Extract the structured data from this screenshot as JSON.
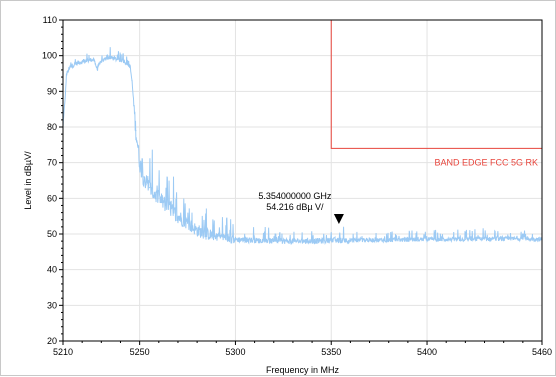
{
  "chart_data": {
    "type": "line",
    "title": "",
    "xlabel": "Frequency in MHz",
    "ylabel": "Level in dBµV/",
    "xlim": [
      5210,
      5460
    ],
    "ylim": [
      20,
      110
    ],
    "x_ticks": [
      5210,
      5250,
      5300,
      5350,
      5400,
      5460
    ],
    "y_ticks": [
      20,
      30,
      40,
      50,
      60,
      70,
      80,
      90,
      100,
      110
    ],
    "x_tick_labels": [
      "5210",
      "5250",
      "5300",
      "5350",
      "5400",
      "5460"
    ],
    "y_tick_labels": [
      "20",
      "30",
      "40",
      "50",
      "60",
      "70",
      "80",
      "90",
      "100",
      "110"
    ],
    "grid": true,
    "series": [
      {
        "color": "#9ccaf4",
        "x": [
          5210,
          5212,
          5214,
          5218,
          5222,
          5226,
          5228,
          5230,
          5234,
          5238,
          5242,
          5245,
          5246,
          5247,
          5248,
          5249,
          5250,
          5252,
          5255,
          5258,
          5262,
          5266,
          5270,
          5275,
          5280,
          5285,
          5290,
          5295,
          5300,
          5310,
          5320,
          5330,
          5340,
          5350,
          5360,
          5370,
          5380,
          5390,
          5400,
          5410,
          5420,
          5430,
          5440,
          5450,
          5460
        ],
        "values": [
          80,
          95,
          97,
          98,
          98.5,
          99,
          96,
          98.5,
          99.5,
          99,
          98.5,
          97,
          93,
          86,
          79,
          75,
          70,
          66,
          63,
          61,
          59,
          57,
          55,
          53,
          51,
          50,
          49.5,
          49,
          48.5,
          48.2,
          48,
          48,
          48,
          48.2,
          48.2,
          48.3,
          48.3,
          48.4,
          48.5,
          48.5,
          48.5,
          48.6,
          48.6,
          48.7,
          48.5
        ]
      }
    ],
    "limit_line": {
      "label": "BAND EDGE FCC 5G RK",
      "color": "#e8453c",
      "vertical_x": 5350,
      "vertical_from": 110,
      "vertical_to": 74,
      "horizontal_level": 74,
      "horizontal_from": 5350,
      "horizontal_to": 5460,
      "end_drop_to": 72
    },
    "marker": {
      "x": 5354,
      "y": 54.216,
      "freq_text": "5.354000000 GHz",
      "level_text": "54.216 dBµ   V/"
    }
  }
}
